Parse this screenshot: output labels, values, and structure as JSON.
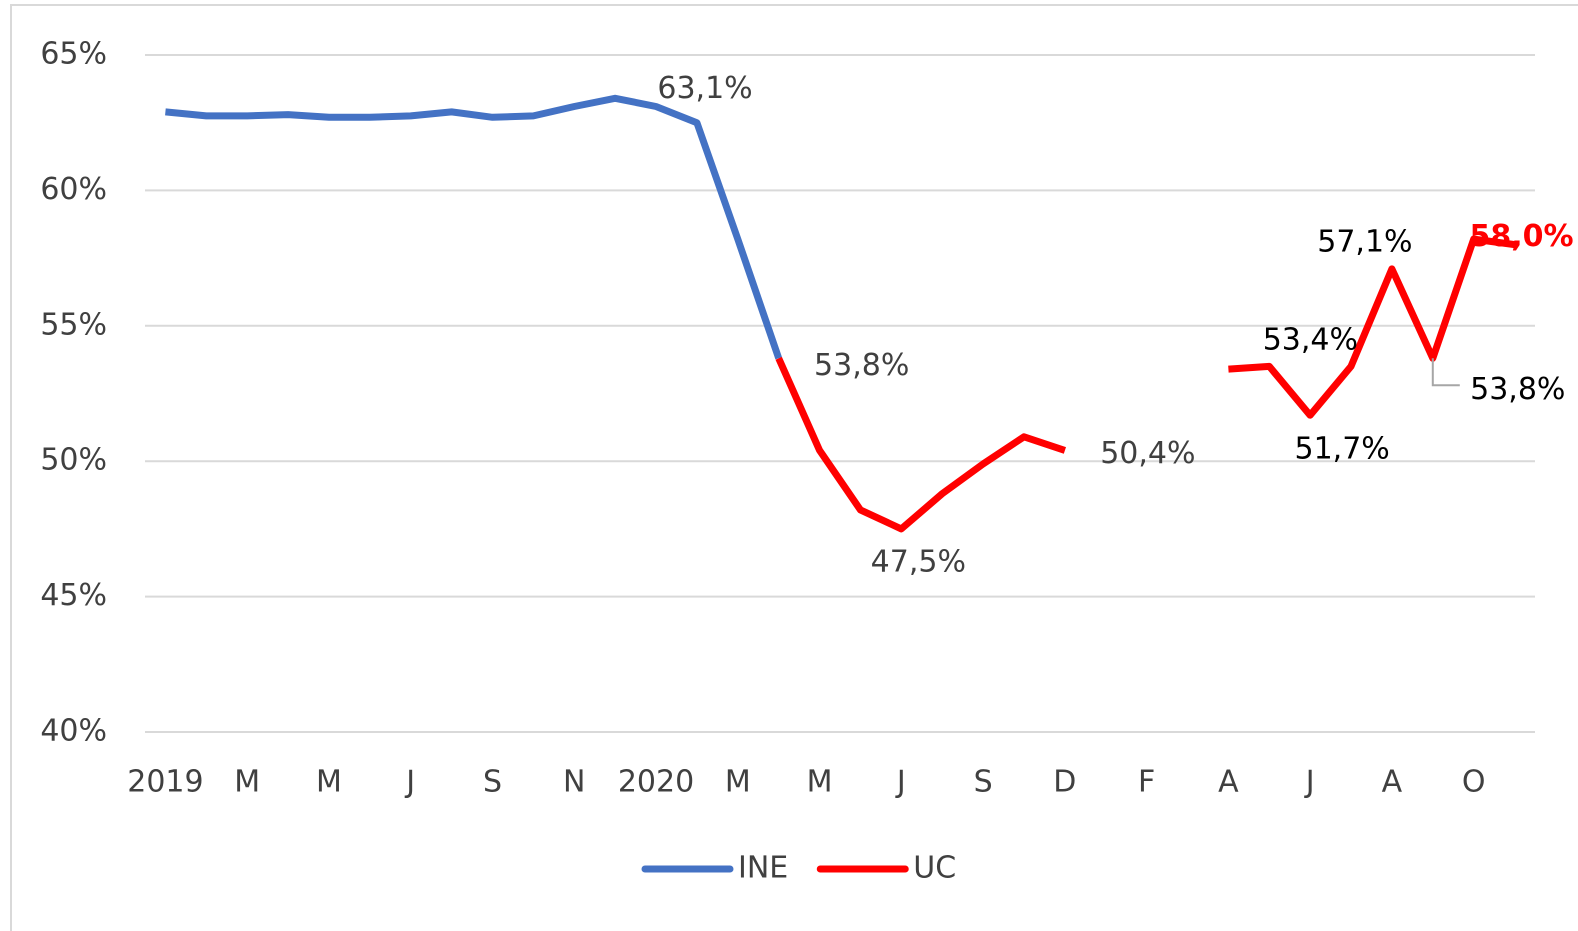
{
  "chart_data": {
    "type": "line",
    "categories": [
      "2019",
      null,
      "M",
      null,
      "M",
      null,
      "J",
      null,
      "S",
      null,
      "N",
      null,
      "2020",
      null,
      "M",
      null,
      "M",
      null,
      "J",
      null,
      "S",
      null,
      "D",
      null,
      "F",
      null,
      "A",
      null,
      "J",
      null,
      "A",
      null,
      "O",
      null
    ],
    "series": [
      {
        "name": "INE",
        "color": "#4472c4",
        "values": [
          62.9,
          62.75,
          62.75,
          62.8,
          62.7,
          62.7,
          62.75,
          62.9,
          62.7,
          62.75,
          63.1,
          63.4,
          63.1,
          62.5,
          58.2,
          53.8,
          null,
          null,
          null,
          null,
          null,
          null,
          null,
          null,
          null,
          null,
          null,
          null,
          null,
          null,
          null,
          null,
          null,
          null
        ],
        "value_labels": [
          null,
          null,
          null,
          null,
          null,
          null,
          null,
          null,
          null,
          null,
          null,
          null,
          "63,1%",
          null,
          null,
          null,
          null,
          null,
          null,
          null,
          null,
          null,
          null,
          null,
          null,
          null,
          null,
          null,
          null,
          null,
          null,
          null,
          null,
          null
        ]
      },
      {
        "name": "UC",
        "color": "#ff0000",
        "values": [
          null,
          null,
          null,
          null,
          null,
          null,
          null,
          null,
          null,
          null,
          null,
          null,
          null,
          null,
          null,
          53.8,
          50.4,
          48.2,
          47.5,
          48.8,
          49.9,
          50.9,
          50.4,
          null,
          null,
          null,
          53.4,
          53.5,
          51.7,
          53.5,
          57.1,
          53.8,
          58.2,
          58.0
        ],
        "value_labels": [
          null,
          null,
          null,
          null,
          null,
          null,
          null,
          null,
          null,
          null,
          null,
          null,
          null,
          null,
          null,
          "53,8%",
          null,
          null,
          "47,5%",
          null,
          null,
          null,
          "50,4%",
          null,
          null,
          null,
          "53,4%",
          null,
          "51,7%",
          null,
          "57,1%",
          "53,8%",
          null,
          "58,0%"
        ]
      }
    ],
    "ylim": [
      40,
      65
    ],
    "yticks": [
      {
        "value": 40,
        "label": "40%"
      },
      {
        "value": 45,
        "label": "45%"
      },
      {
        "value": 50,
        "label": "50%"
      },
      {
        "value": 55,
        "label": "55%"
      },
      {
        "value": 60,
        "label": "60%"
      },
      {
        "value": 65,
        "label": "65%"
      }
    ],
    "grid": true,
    "legend": "bottom"
  }
}
